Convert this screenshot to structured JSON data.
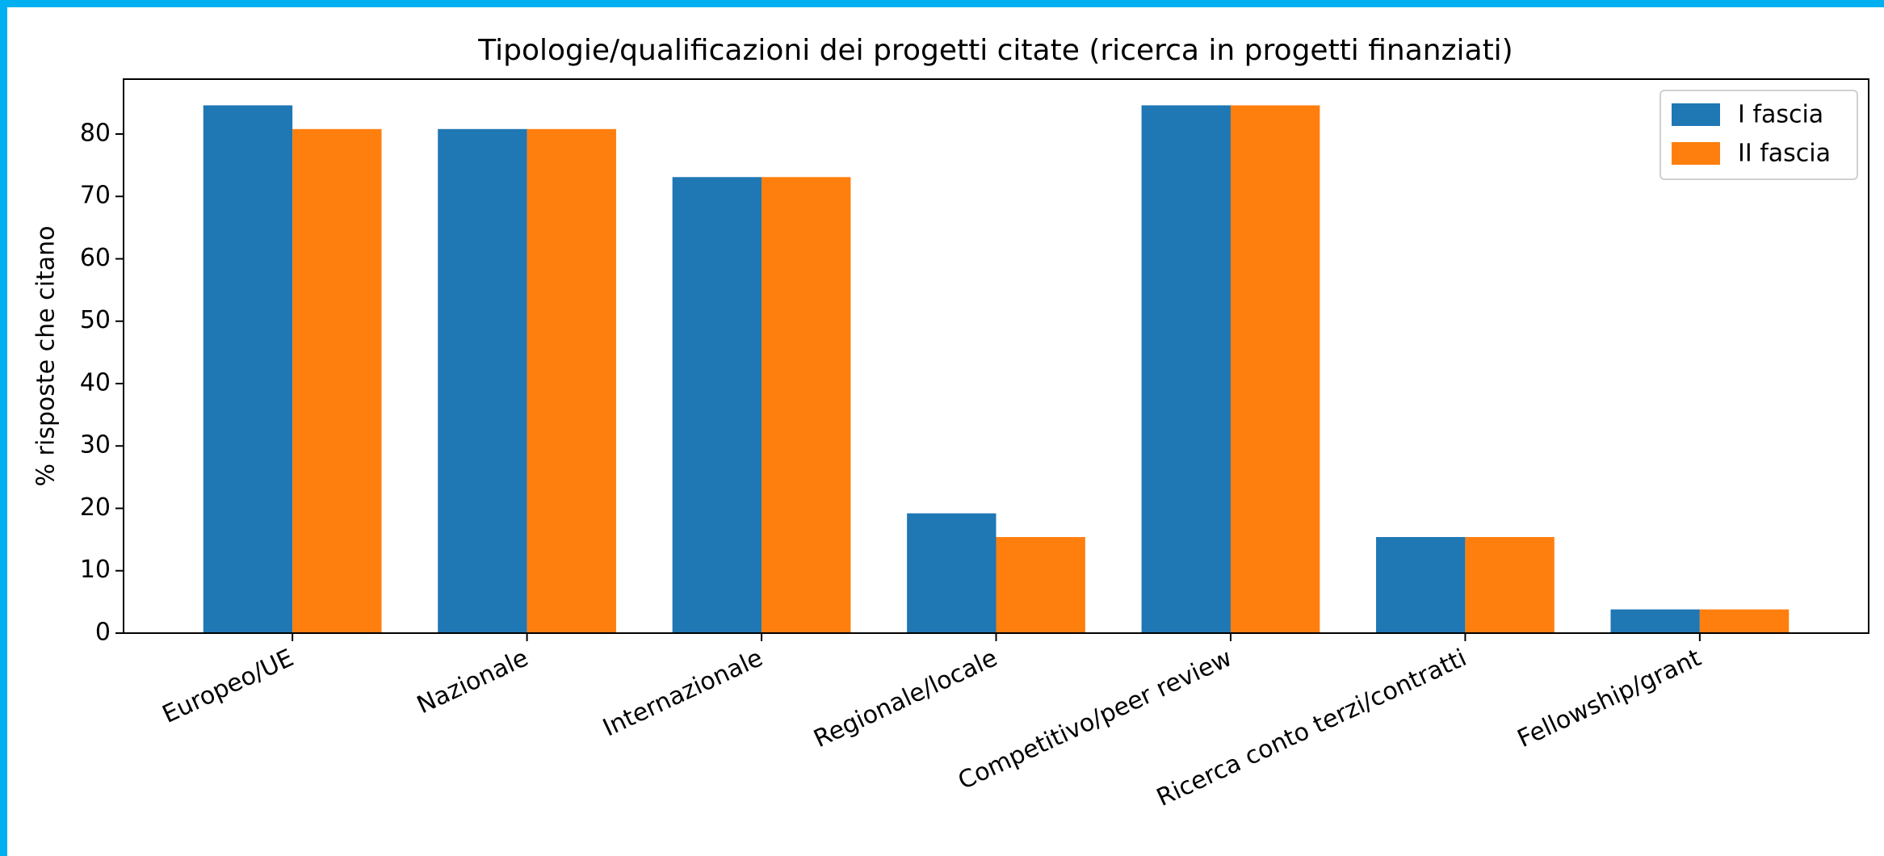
{
  "chart_data": {
    "type": "bar",
    "title": "Tipologie/qualificazioni dei progetti citate (ricerca in progetti finanziati)",
    "ylabel": "% risposte che citano",
    "categories": [
      "Europeo/UE",
      "Nazionale",
      "Internazionale",
      "Regionale/locale",
      "Competitivo/peer review",
      "Ricerca conto terzi/contratti",
      "Fellowship/grant"
    ],
    "series": [
      {
        "name": "I fascia",
        "color": "#1f77b4",
        "values": [
          84.6,
          80.8,
          73.1,
          19.2,
          84.6,
          15.4,
          3.8
        ]
      },
      {
        "name": "II fascia",
        "color": "#ff7f0e",
        "values": [
          80.8,
          80.8,
          73.1,
          15.4,
          84.6,
          15.4,
          3.8
        ]
      }
    ],
    "ylim": [
      0,
      88.8
    ],
    "yticks": [
      0,
      10,
      20,
      30,
      40,
      50,
      60,
      70,
      80
    ],
    "legend": "upper right"
  }
}
